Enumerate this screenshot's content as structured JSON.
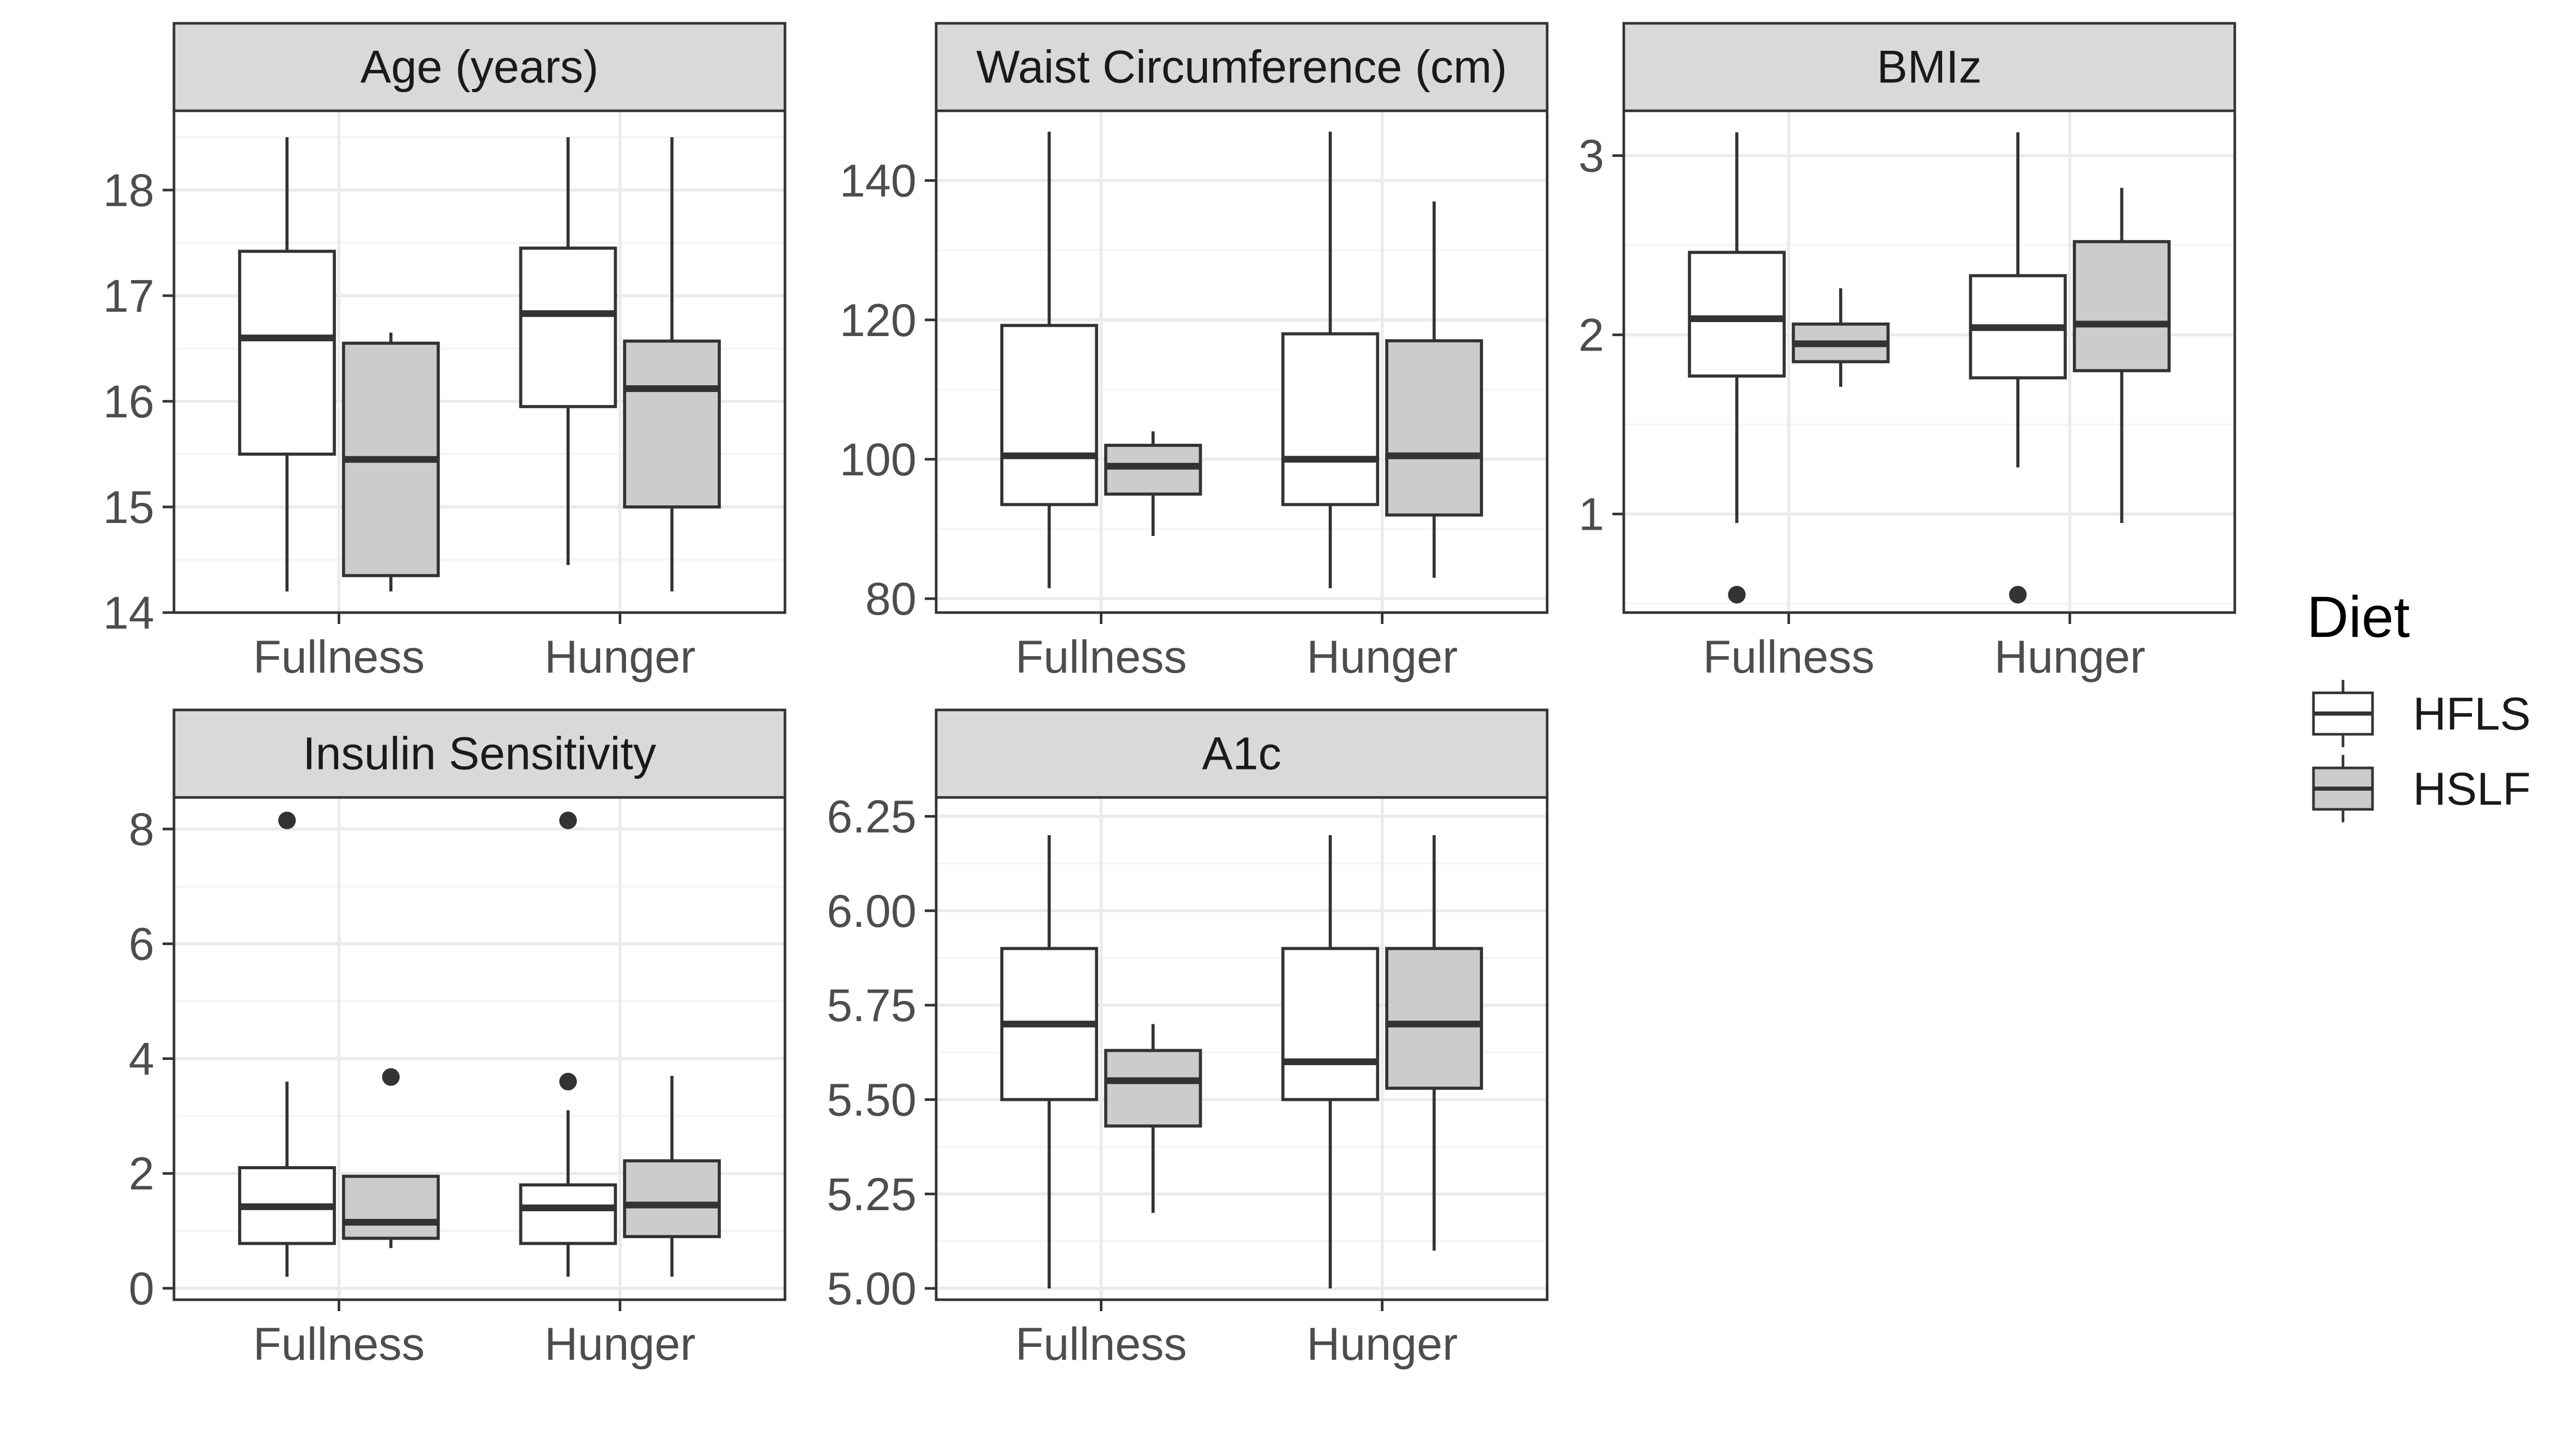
{
  "chart_data": {
    "type": "boxplot",
    "x_categories": [
      "Fullness",
      "Hunger"
    ],
    "legend": {
      "title": "Diet",
      "entries": [
        {
          "label": "HFLS",
          "fill": "#ffffff"
        },
        {
          "label": "HSLF",
          "fill": "#cccccc"
        }
      ]
    },
    "colors": {
      "panel_border": "#333333",
      "strip_bg": "#d9d9d9",
      "grid_major": "#ebebeb",
      "grid_minor": "#f5f5f5",
      "box_line": "#333333"
    },
    "panels": [
      {
        "title": "Age (years)",
        "ylim": [
          14.0,
          18.75
        ],
        "yticks": [
          14,
          15,
          16,
          17,
          18
        ],
        "ytick_labels": [
          "14",
          "15",
          "16",
          "17",
          "18"
        ],
        "boxes": [
          {
            "category": "Fullness",
            "diet": "HFLS",
            "whisker_low": 14.2,
            "q1": 15.5,
            "median": 16.6,
            "q3": 17.42,
            "whisker_high": 18.5,
            "outliers": []
          },
          {
            "category": "Fullness",
            "diet": "HSLF",
            "whisker_low": 14.2,
            "q1": 14.35,
            "median": 15.45,
            "q3": 16.55,
            "whisker_high": 16.65,
            "outliers": []
          },
          {
            "category": "Hunger",
            "diet": "HFLS",
            "whisker_low": 14.45,
            "q1": 15.95,
            "median": 16.83,
            "q3": 17.45,
            "whisker_high": 18.5,
            "outliers": []
          },
          {
            "category": "Hunger",
            "diet": "HSLF",
            "whisker_low": 14.2,
            "q1": 15.0,
            "median": 16.12,
            "q3": 16.57,
            "whisker_high": 18.5,
            "outliers": []
          }
        ]
      },
      {
        "title": "Waist Circumference (cm)",
        "ylim": [
          78.0,
          150.0
        ],
        "yticks": [
          80,
          100,
          120,
          140
        ],
        "ytick_labels": [
          "80",
          "100",
          "120",
          "140"
        ],
        "boxes": [
          {
            "category": "Fullness",
            "diet": "HFLS",
            "whisker_low": 81.5,
            "q1": 93.5,
            "median": 100.5,
            "q3": 119.2,
            "whisker_high": 147.0,
            "outliers": []
          },
          {
            "category": "Fullness",
            "diet": "HSLF",
            "whisker_low": 89.0,
            "q1": 95.0,
            "median": 99.0,
            "q3": 102.0,
            "whisker_high": 104.0,
            "outliers": []
          },
          {
            "category": "Hunger",
            "diet": "HFLS",
            "whisker_low": 81.5,
            "q1": 93.5,
            "median": 100.0,
            "q3": 118.0,
            "whisker_high": 147.0,
            "outliers": []
          },
          {
            "category": "Hunger",
            "diet": "HSLF",
            "whisker_low": 83.0,
            "q1": 92.0,
            "median": 100.5,
            "q3": 117.0,
            "whisker_high": 137.0,
            "outliers": []
          }
        ]
      },
      {
        "title": "BMIz",
        "ylim": [
          0.45,
          3.25
        ],
        "yticks": [
          1,
          2,
          3
        ],
        "ytick_labels": [
          "1",
          "2",
          "3"
        ],
        "boxes": [
          {
            "category": "Fullness",
            "diet": "HFLS",
            "whisker_low": 0.95,
            "q1": 1.77,
            "median": 2.09,
            "q3": 2.46,
            "whisker_high": 3.13,
            "outliers": [
              0.55
            ]
          },
          {
            "category": "Fullness",
            "diet": "HSLF",
            "whisker_low": 1.71,
            "q1": 1.85,
            "median": 1.95,
            "q3": 2.06,
            "whisker_high": 2.26,
            "outliers": []
          },
          {
            "category": "Hunger",
            "diet": "HFLS",
            "whisker_low": 1.26,
            "q1": 1.76,
            "median": 2.04,
            "q3": 2.33,
            "whisker_high": 3.13,
            "outliers": [
              0.55
            ]
          },
          {
            "category": "Hunger",
            "diet": "HSLF",
            "whisker_low": 0.95,
            "q1": 1.8,
            "median": 2.06,
            "q3": 2.52,
            "whisker_high": 2.82,
            "outliers": []
          }
        ]
      },
      {
        "title": "Insulin Sensitivity",
        "ylim": [
          -0.2,
          8.55
        ],
        "yticks": [
          0,
          2,
          4,
          6,
          8
        ],
        "ytick_labels": [
          "0",
          "2",
          "4",
          "6",
          "8"
        ],
        "boxes": [
          {
            "category": "Fullness",
            "diet": "HFLS",
            "whisker_low": 0.2,
            "q1": 0.78,
            "median": 1.42,
            "q3": 2.1,
            "whisker_high": 3.6,
            "outliers": [
              8.15
            ]
          },
          {
            "category": "Fullness",
            "diet": "HSLF",
            "whisker_low": 0.7,
            "q1": 0.87,
            "median": 1.15,
            "q3": 1.95,
            "whisker_high": 1.95,
            "outliers": [
              3.68
            ]
          },
          {
            "category": "Hunger",
            "diet": "HFLS",
            "whisker_low": 0.2,
            "q1": 0.78,
            "median": 1.4,
            "q3": 1.8,
            "whisker_high": 3.1,
            "outliers": [
              3.6,
              8.15
            ]
          },
          {
            "category": "Hunger",
            "diet": "HSLF",
            "whisker_low": 0.2,
            "q1": 0.9,
            "median": 1.45,
            "q3": 2.22,
            "whisker_high": 3.7,
            "outliers": []
          }
        ]
      },
      {
        "title": "A1c",
        "ylim": [
          4.97,
          6.3
        ],
        "yticks": [
          5.0,
          5.25,
          5.5,
          5.75,
          6.0,
          6.25
        ],
        "ytick_labels": [
          "5.00",
          "5.25",
          "5.50",
          "5.75",
          "6.00",
          "6.25"
        ],
        "boxes": [
          {
            "category": "Fullness",
            "diet": "HFLS",
            "whisker_low": 5.0,
            "q1": 5.5,
            "median": 5.7,
            "q3": 5.9,
            "whisker_high": 6.2,
            "outliers": []
          },
          {
            "category": "Fullness",
            "diet": "HSLF",
            "whisker_low": 5.2,
            "q1": 5.43,
            "median": 5.55,
            "q3": 5.63,
            "whisker_high": 5.7,
            "outliers": []
          },
          {
            "category": "Hunger",
            "diet": "HFLS",
            "whisker_low": 5.0,
            "q1": 5.5,
            "median": 5.6,
            "q3": 5.9,
            "whisker_high": 6.2,
            "outliers": []
          },
          {
            "category": "Hunger",
            "diet": "HSLF",
            "whisker_low": 5.1,
            "q1": 5.53,
            "median": 5.7,
            "q3": 5.9,
            "whisker_high": 6.2,
            "outliers": []
          }
        ]
      }
    ]
  }
}
